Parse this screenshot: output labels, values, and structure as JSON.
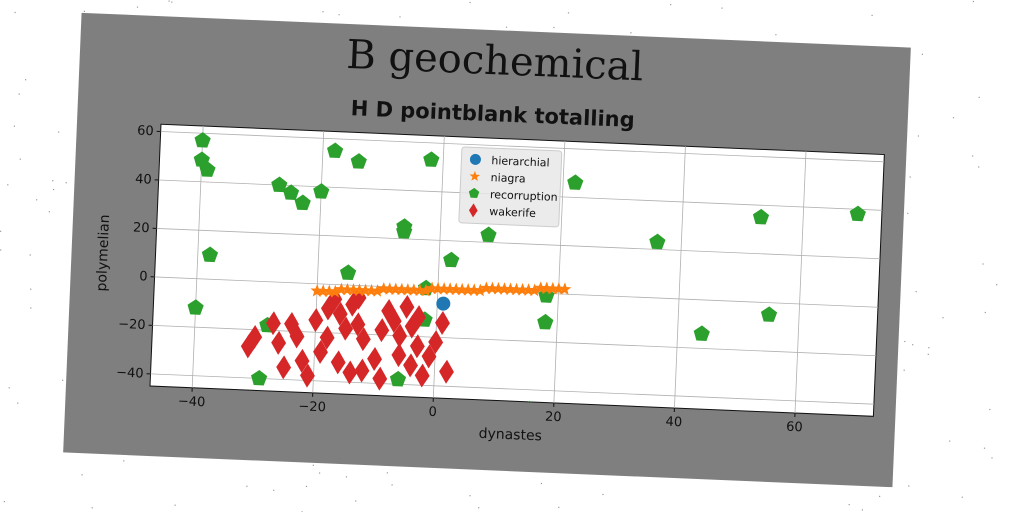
{
  "chart_data": {
    "type": "scatter",
    "suptitle": "B geochemical",
    "title": "H D pointblank totalling",
    "xlabel": "dynastes",
    "ylabel": "polymelian",
    "xlim": [
      -47,
      73
    ],
    "ylim": [
      -45,
      63
    ],
    "xticks": [
      -40,
      -20,
      0,
      20,
      40,
      60
    ],
    "yticks": [
      -40,
      -20,
      0,
      20,
      40,
      60
    ],
    "grid": true,
    "legend_position": "top-center",
    "series": [
      {
        "name": "hierarchial",
        "marker": "circle",
        "color": "#1f77b4",
        "points": [
          [
            1,
            -6
          ]
        ]
      },
      {
        "name": "niagra",
        "marker": "star",
        "color": "#ff7f0e",
        "points": [
          [
            -20,
            -3
          ],
          [
            -19,
            -3
          ],
          [
            -18,
            -3
          ],
          [
            -17,
            -3
          ],
          [
            -16,
            -2
          ],
          [
            -15,
            -2
          ],
          [
            -14,
            -2
          ],
          [
            -13,
            -2
          ],
          [
            -12,
            -2
          ],
          [
            -11,
            -2
          ],
          [
            -10,
            -2
          ],
          [
            -9,
            -1
          ],
          [
            -8,
            -1
          ],
          [
            -7,
            -1
          ],
          [
            -6,
            -1
          ],
          [
            -5,
            -1
          ],
          [
            -4,
            -1
          ],
          [
            -3,
            -1
          ],
          [
            -2,
            -1
          ],
          [
            -1,
            0
          ],
          [
            0,
            0
          ],
          [
            1,
            0
          ],
          [
            2,
            0
          ],
          [
            3,
            0
          ],
          [
            4,
            0
          ],
          [
            5,
            0
          ],
          [
            6,
            0
          ],
          [
            7,
            0
          ],
          [
            8,
            1
          ],
          [
            9,
            1
          ],
          [
            10,
            1
          ],
          [
            11,
            1
          ],
          [
            12,
            1
          ],
          [
            13,
            1
          ],
          [
            14,
            1
          ],
          [
            15,
            1
          ],
          [
            16,
            1
          ],
          [
            17,
            2
          ],
          [
            18,
            2
          ],
          [
            19,
            2
          ],
          [
            20,
            2
          ],
          [
            21,
            2
          ]
        ]
      },
      {
        "name": "recorruption",
        "marker": "pentagon",
        "color": "#2ca02c",
        "points": [
          [
            -40,
            57
          ],
          [
            -40,
            49
          ],
          [
            -39,
            45
          ],
          [
            -38,
            10
          ],
          [
            -40,
            -12
          ],
          [
            -27,
            40
          ],
          [
            -25,
            37
          ],
          [
            -23,
            33
          ],
          [
            -20,
            38
          ],
          [
            -18,
            55
          ],
          [
            -14,
            51
          ],
          [
            -2,
            53
          ],
          [
            -6,
            25
          ],
          [
            -6,
            23
          ],
          [
            -15,
            5
          ],
          [
            -28,
            -18
          ],
          [
            -29,
            -40
          ],
          [
            -2,
            0
          ],
          [
            -2,
            -13
          ],
          [
            -6,
            -38
          ],
          [
            2,
            12
          ],
          [
            8,
            23
          ],
          [
            22,
            46
          ],
          [
            18,
            -1
          ],
          [
            18,
            -12
          ],
          [
            16,
            -48
          ],
          [
            36,
            23
          ],
          [
            44,
            -14
          ],
          [
            53,
            35
          ],
          [
            55,
            -5
          ],
          [
            69,
            38
          ]
        ]
      },
      {
        "name": "wakerife",
        "marker": "diamond",
        "color": "#d62728",
        "points": [
          [
            -31,
            -27
          ],
          [
            -30,
            -23
          ],
          [
            -27,
            -17
          ],
          [
            -26,
            -25
          ],
          [
            -24,
            -17
          ],
          [
            -23,
            -22
          ],
          [
            -25,
            -35
          ],
          [
            -22,
            -32
          ],
          [
            -19,
            -28
          ],
          [
            -20,
            -15
          ],
          [
            -18,
            -22
          ],
          [
            -17,
            -6
          ],
          [
            -16,
            -12
          ],
          [
            -15,
            -18
          ],
          [
            -14,
            -8
          ],
          [
            -13,
            -16
          ],
          [
            -12,
            -22
          ],
          [
            -16,
            -32
          ],
          [
            -14,
            -36
          ],
          [
            -12,
            -35
          ],
          [
            -10,
            -30
          ],
          [
            -9,
            -18
          ],
          [
            -8,
            -10
          ],
          [
            -7,
            -14
          ],
          [
            -6,
            -20
          ],
          [
            -5,
            -8
          ],
          [
            -4,
            -16
          ],
          [
            -3,
            -12
          ],
          [
            -6,
            -28
          ],
          [
            -4,
            -32
          ],
          [
            -2,
            -36
          ],
          [
            -1,
            -28
          ],
          [
            0,
            -22
          ],
          [
            1,
            -14
          ],
          [
            2,
            -34
          ],
          [
            -13,
            -5
          ],
          [
            -9,
            -38
          ],
          [
            -3,
            -24
          ],
          [
            -21,
            -38
          ],
          [
            -18,
            -10
          ]
        ]
      }
    ]
  }
}
